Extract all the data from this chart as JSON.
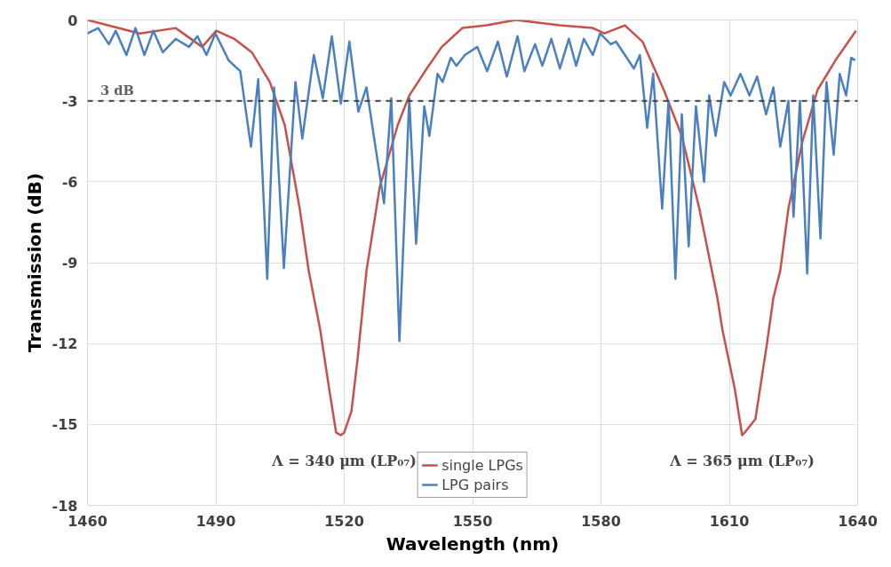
{
  "chart_data": {
    "type": "line",
    "xlabel": "Wavelength (nm)",
    "ylabel": "Transmission (dB)",
    "xlim": [
      1460,
      1640
    ],
    "xticks": [
      1460,
      1490,
      1520,
      1550,
      1580,
      1610,
      1640
    ],
    "ylim": [
      -18,
      0
    ],
    "yticks": [
      -18,
      -15,
      -12,
      -9,
      -6,
      -3,
      0
    ],
    "grid": true,
    "legend": "bottom",
    "line_style": "solid",
    "marker": "none",
    "ref_lines": [
      {
        "axis": "y",
        "value": -3,
        "label": "3 dB",
        "color": "#404040",
        "line_style": "dashed"
      }
    ],
    "annotations": [
      {
        "text": "Λ = 340 μm (LP₀₇)",
        "x": 1520,
        "y": -15.3
      },
      {
        "text": "Λ = 365 μm (LP₀₇)",
        "x": 1613,
        "y": -15.3
      }
    ],
    "series": [
      {
        "name": "single LPGs",
        "color": "#c8504a",
        "x": [
          1460,
          1472.2,
          1480.6,
          1486.8,
          1490.1,
          1494.3,
          1498.4,
          1502.6,
          1506.1,
          1509.6,
          1511.7,
          1514.4,
          1516.5,
          1518.1,
          1519.2,
          1520,
          1521.7,
          1523.1,
          1525.2,
          1528.3,
          1532.5,
          1535.2,
          1539.3,
          1542.8,
          1547.6,
          1553.2,
          1560.1,
          1570.4,
          1578.1,
          1580.8,
          1585.6,
          1589.7,
          1594.7,
          1598.9,
          1603,
          1607.2,
          1608.4,
          1611.3,
          1613,
          1613.6,
          1616.1,
          1618.8,
          1620.3,
          1621.9,
          1623.8,
          1627.1,
          1630.6,
          1634.8,
          1639.6
        ],
        "values": [
          0,
          -0.5,
          -0.3,
          -1.0,
          -0.4,
          -0.7,
          -1.2,
          -2.3,
          -3.9,
          -7.0,
          -9.3,
          -11.5,
          -13.7,
          -15.3,
          -15.4,
          -15.3,
          -14.5,
          -12.6,
          -9.3,
          -6.2,
          -3.9,
          -2.8,
          -1.8,
          -1.0,
          -0.3,
          -0.2,
          0,
          -0.2,
          -0.3,
          -0.5,
          -0.2,
          -0.8,
          -2.6,
          -4.3,
          -7.0,
          -10.3,
          -11.5,
          -13.7,
          -15.4,
          -15.3,
          -14.8,
          -12.0,
          -10.3,
          -9.3,
          -7.0,
          -4.5,
          -2.6,
          -1.5,
          -0.4
        ]
      },
      {
        "name": "LPG pairs",
        "color": "#4a7fc1",
        "x": [
          1460,
          1462.5,
          1465,
          1466.6,
          1469.1,
          1471.2,
          1473.3,
          1475.4,
          1477.6,
          1480.6,
          1483.7,
          1485.7,
          1487.8,
          1489.9,
          1493,
          1495.7,
          1498.2,
          1499.9,
          1502,
          1503.6,
          1505.9,
          1508.6,
          1510.2,
          1512.9,
          1515,
          1517.1,
          1519.2,
          1521.2,
          1523.3,
          1525.2,
          1529.3,
          1531,
          1532.9,
          1535.2,
          1536.8,
          1538.7,
          1539.9,
          1541.8,
          1543,
          1544.9,
          1546.2,
          1548.2,
          1551.1,
          1553.4,
          1555.9,
          1558,
          1560.5,
          1562.1,
          1564.6,
          1566.3,
          1568.4,
          1570.4,
          1572.5,
          1574.2,
          1576,
          1578.1,
          1579.8,
          1582.3,
          1583.5,
          1587.7,
          1589.1,
          1590.8,
          1592.2,
          1594.3,
          1595.8,
          1597.4,
          1598.9,
          1600.5,
          1602.2,
          1604.1,
          1605.3,
          1606.8,
          1608.8,
          1610.3,
          1612.6,
          1614.7,
          1616.5,
          1618.6,
          1620.3,
          1621.9,
          1623.8,
          1625,
          1626.5,
          1628.2,
          1629.6,
          1631.3,
          1632.7,
          1634.4,
          1635.8,
          1637.3,
          1638.5,
          1639.4
        ],
        "values": [
          -0.5,
          -0.3,
          -0.9,
          -0.4,
          -1.3,
          -0.3,
          -1.3,
          -0.4,
          -1.2,
          -0.7,
          -1.0,
          -0.6,
          -1.3,
          -0.5,
          -1.5,
          -1.9,
          -4.7,
          -2.2,
          -9.6,
          -2.5,
          -9.2,
          -2.3,
          -4.4,
          -1.3,
          -2.9,
          -0.6,
          -3.1,
          -0.8,
          -3.4,
          -2.5,
          -6.8,
          -2.9,
          -11.9,
          -2.9,
          -8.3,
          -3.2,
          -4.3,
          -2.0,
          -2.3,
          -1.4,
          -1.7,
          -1.3,
          -1.0,
          -1.9,
          -0.8,
          -2.1,
          -0.6,
          -1.9,
          -0.9,
          -1.7,
          -0.7,
          -1.8,
          -0.7,
          -1.7,
          -0.7,
          -1.3,
          -0.5,
          -0.9,
          -0.8,
          -1.8,
          -1.3,
          -4.0,
          -2.0,
          -7.0,
          -3.0,
          -9.6,
          -3.5,
          -8.4,
          -3.2,
          -6.0,
          -2.8,
          -4.3,
          -2.3,
          -2.8,
          -2.0,
          -2.8,
          -2.1,
          -3.5,
          -2.5,
          -4.7,
          -3.0,
          -7.3,
          -3.0,
          -9.4,
          -2.8,
          -8.1,
          -2.3,
          -5.0,
          -2.0,
          -2.8,
          -1.4,
          -1.5
        ]
      }
    ]
  }
}
